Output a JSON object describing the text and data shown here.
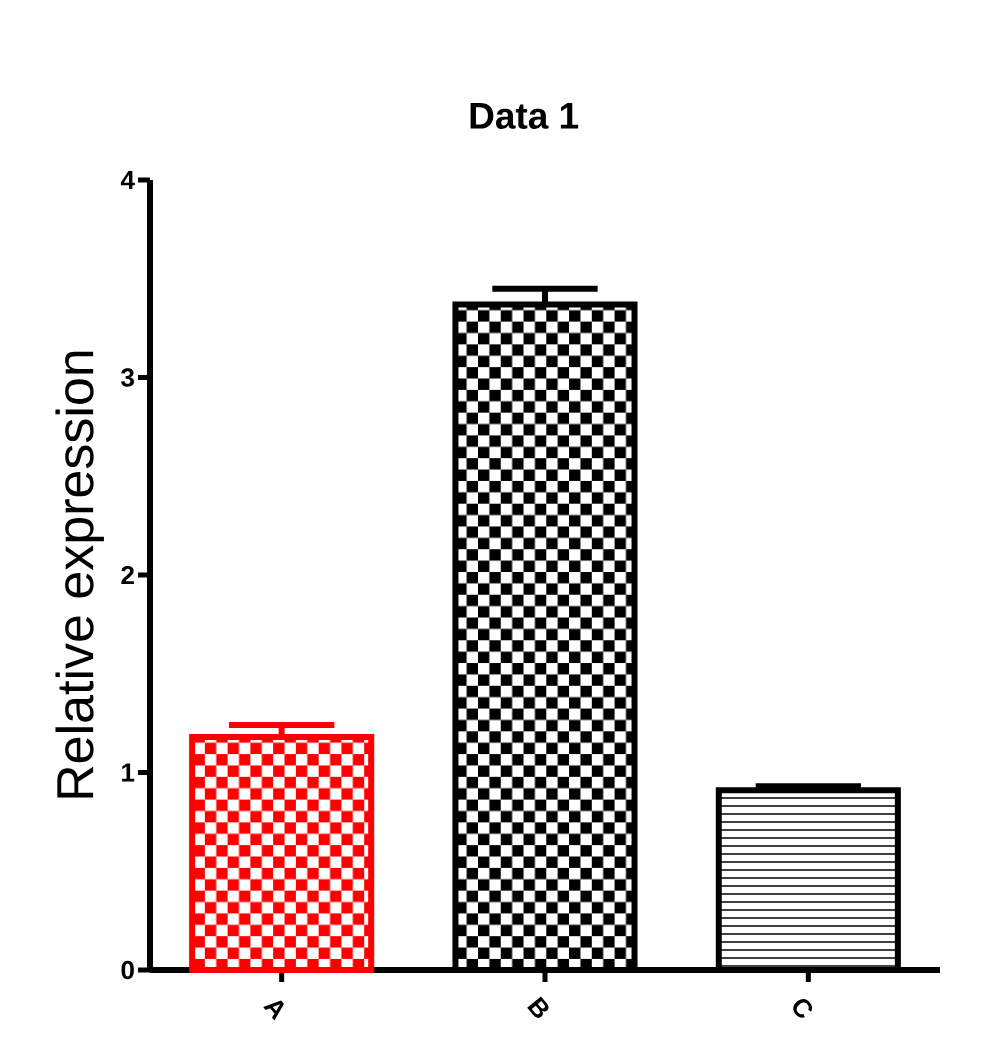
{
  "chart_data": {
    "type": "bar",
    "title": "Data 1",
    "ylabel": "Relative expression",
    "categories": [
      "A",
      "B",
      "C"
    ],
    "values": [
      1.18,
      3.37,
      0.91
    ],
    "errors": [
      [
        1.18,
        1.24
      ],
      [
        3.37,
        3.45
      ],
      [
        0.91,
        0.93
      ]
    ],
    "colors": [
      "#ff0000",
      "#000000",
      "#000000"
    ],
    "ylim": [
      0,
      4
    ],
    "yticks": [
      0,
      1,
      2,
      3,
      4
    ]
  }
}
